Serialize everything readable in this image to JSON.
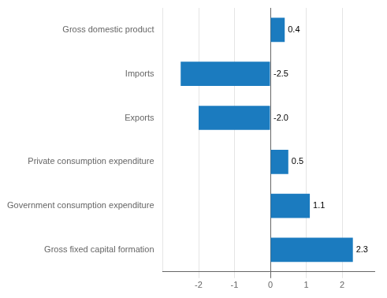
{
  "chart_data": {
    "type": "bar",
    "orientation": "horizontal",
    "categories": [
      "Gross fixed capital formation",
      "Government consumption expenditure",
      "Private consumption expenditure",
      "Exports",
      "Imports",
      "Gross domestic product"
    ],
    "values": [
      2.3,
      1.1,
      0.5,
      -2.0,
      -2.5,
      0.4
    ],
    "value_labels": [
      "2.3",
      "1.1",
      "0.5",
      "-2.0",
      "-2.5",
      "0.4"
    ],
    "data_labels": true,
    "color": "#1b7bbf",
    "xlim": [
      -3.0,
      2.9
    ],
    "xticks": [
      -2,
      -1,
      0,
      1,
      2
    ],
    "grid": true
  }
}
